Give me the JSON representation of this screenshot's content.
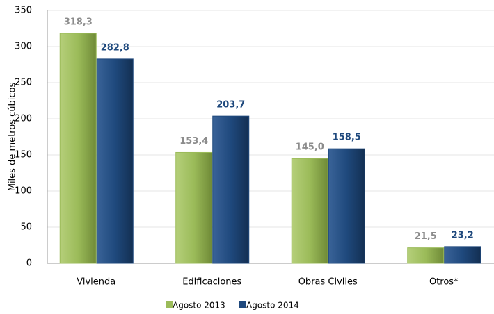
{
  "chart_data": {
    "type": "bar",
    "y_label": "Miles de metros  cúbicos",
    "categories": [
      "Vivienda",
      "Edificaciones",
      "Obras Civiles",
      "Otros*"
    ],
    "series": [
      {
        "name": "Agosto 2013",
        "color": "#9bbb59",
        "label_color": "#8c8c8c",
        "values": [
          318.3,
          153.4,
          145.0,
          21.5
        ],
        "value_labels": [
          "318,3",
          "153,4",
          "145,0",
          "21,5"
        ]
      },
      {
        "name": "Agosto 2014",
        "color": "#1f497d",
        "label_color": "#1f497d",
        "values": [
          282.8,
          203.7,
          158.5,
          23.2
        ],
        "value_labels": [
          "282,8",
          "203,7",
          "158,5",
          "23,2"
        ]
      }
    ],
    "ylim": [
      0,
      350
    ],
    "yticks": [
      0,
      50,
      100,
      150,
      200,
      250,
      300,
      350
    ],
    "grid": true,
    "legend": "bottom"
  }
}
